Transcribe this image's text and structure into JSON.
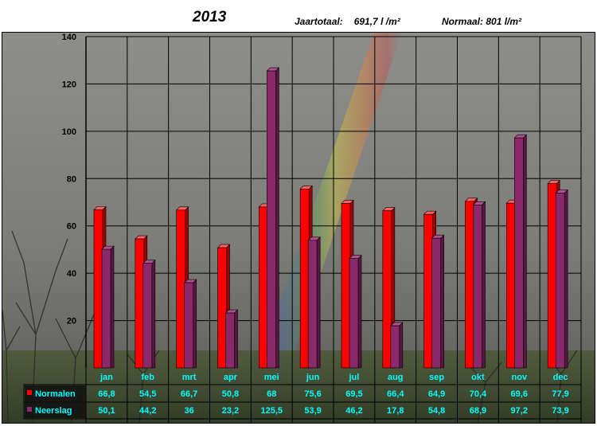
{
  "header": {
    "annual_label": "Jaartotaal:",
    "annual_value": "691,7  l /m²",
    "normal_label": "Normaal:",
    "normal_value": "801 l/m²"
  },
  "colors": {
    "normalen": "#ff0000",
    "neerslag": "#8b2a6a",
    "table_text": "#00ffff",
    "table_bg": "#000000"
  },
  "chart_data": {
    "type": "bar",
    "title": "2013",
    "xlabel": "",
    "ylabel": "",
    "ylim": [
      0,
      140
    ],
    "yticks": [
      20,
      40,
      60,
      80,
      100,
      120,
      140
    ],
    "grid": true,
    "legend_placement": "bottom-left data table",
    "categories": [
      "jan",
      "feb",
      "mrt",
      "apr",
      "mei",
      "jun",
      "jul",
      "aug",
      "sep",
      "okt",
      "nov",
      "dec"
    ],
    "series": [
      {
        "name": "Normalen",
        "values": [
          66.8,
          54.5,
          66.7,
          50.8,
          68,
          75.6,
          69.5,
          66.4,
          64.9,
          70.4,
          69.6,
          77.9
        ],
        "labels": [
          "66,8",
          "54,5",
          "66,7",
          "50,8",
          "68",
          "75,6",
          "69,5",
          "66,4",
          "64,9",
          "70,4",
          "69,6",
          "77,9"
        ]
      },
      {
        "name": "Neerslag",
        "values": [
          50.1,
          44.2,
          36,
          23.2,
          125.5,
          53.9,
          46.2,
          17.8,
          54.8,
          68.9,
          97.2,
          73.9
        ],
        "labels": [
          "50,1",
          "44,2",
          "36",
          "23,2",
          "125,5",
          "53,9",
          "46,2",
          "17,8",
          "54,8",
          "68,9",
          "97,2",
          "73,9"
        ]
      }
    ]
  }
}
